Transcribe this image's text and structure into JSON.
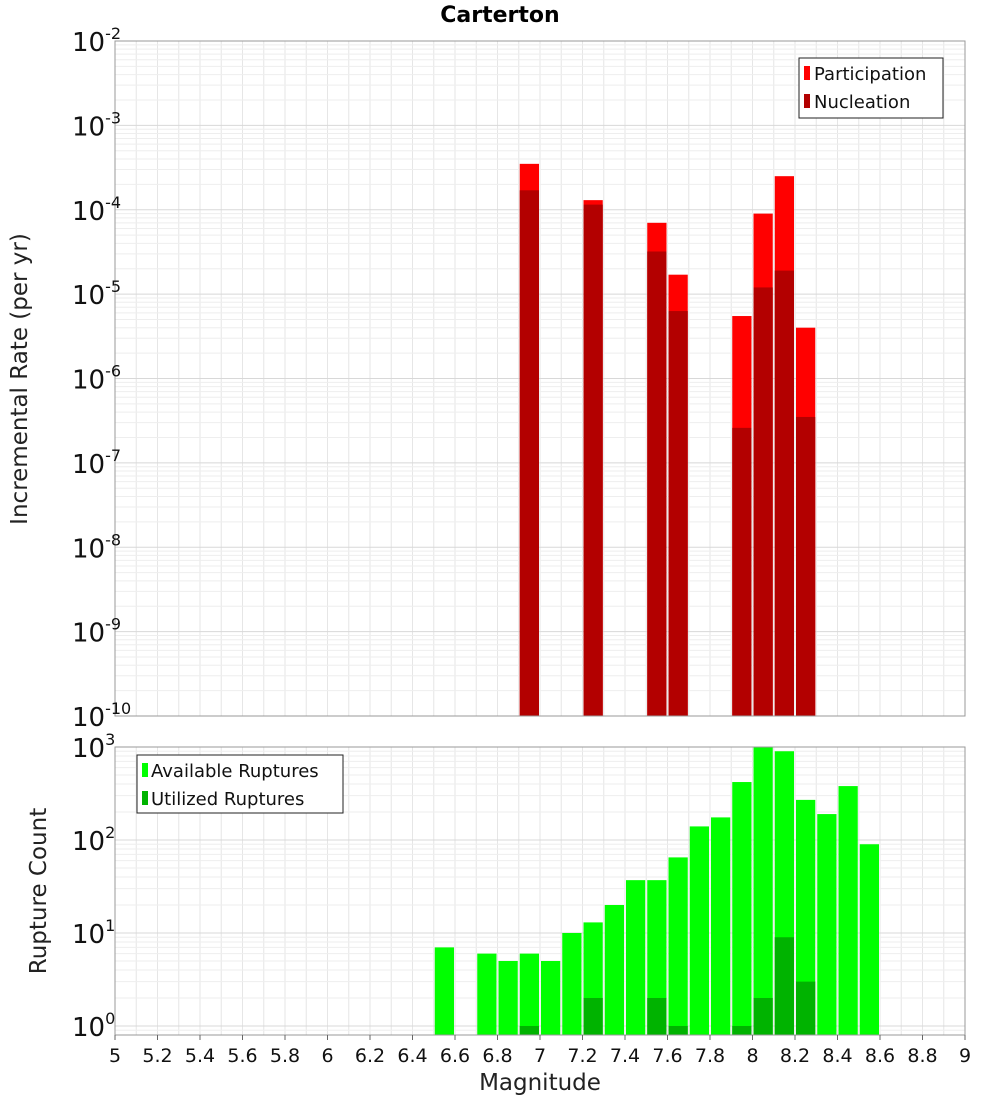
{
  "chart_data": [
    {
      "type": "bar",
      "title": "Carterton",
      "xlabel": "",
      "ylabel": "Incremental Rate (per yr)",
      "yscale": "log",
      "ylim": [
        1e-10,
        0.01
      ],
      "xlim": [
        5,
        9
      ],
      "yticks": [
        {
          "base": "10",
          "exp": "-2"
        },
        {
          "base": "10",
          "exp": "-3"
        },
        {
          "base": "10",
          "exp": "-4"
        },
        {
          "base": "10",
          "exp": "-5"
        },
        {
          "base": "10",
          "exp": "-6"
        },
        {
          "base": "10",
          "exp": "-7"
        },
        {
          "base": "10",
          "exp": "-8"
        },
        {
          "base": "10",
          "exp": "-9"
        },
        {
          "base": "10",
          "exp": "-10"
        }
      ],
      "legend_position": "top-right",
      "grid": true,
      "series": [
        {
          "name": "Participation",
          "color": "#ff0000",
          "x": [
            6.95,
            7.25,
            7.55,
            7.65,
            7.95,
            8.05,
            8.15,
            8.25
          ],
          "values": [
            0.00035,
            0.00013,
            7e-05,
            1.7e-05,
            5.5e-06,
            9e-05,
            0.00025,
            4e-06
          ]
        },
        {
          "name": "Nucleation",
          "color": "#b30000",
          "x": [
            6.95,
            7.25,
            7.55,
            7.65,
            7.95,
            8.05,
            8.15,
            8.25
          ],
          "values": [
            0.00017,
            0.000115,
            3.2e-05,
            6.3e-06,
            2.6e-07,
            1.2e-05,
            1.9e-05,
            3.5e-07
          ]
        }
      ]
    },
    {
      "type": "bar",
      "title": "",
      "xlabel": "Magnitude",
      "ylabel": "Rupture Count",
      "yscale": "log",
      "ylim": [
        0.8,
        1000
      ],
      "xlim": [
        5,
        9
      ],
      "xticks": [
        "5",
        "5.2",
        "5.4",
        "5.6",
        "5.8",
        "6",
        "6.2",
        "6.4",
        "6.6",
        "6.8",
        "7",
        "7.2",
        "7.4",
        "7.6",
        "7.8",
        "8",
        "8.2",
        "8.4",
        "8.6",
        "8.8",
        "9"
      ],
      "yticks": [
        {
          "base": "10",
          "exp": "3"
        },
        {
          "base": "10",
          "exp": "2"
        },
        {
          "base": "10",
          "exp": "1"
        },
        {
          "base": "10",
          "exp": "0"
        }
      ],
      "legend_position": "top-left",
      "grid": true,
      "series": [
        {
          "name": "Available Ruptures",
          "color": "#00ff00",
          "x": [
            6.55,
            6.75,
            6.85,
            6.95,
            7.05,
            7.15,
            7.25,
            7.35,
            7.45,
            7.55,
            7.65,
            7.75,
            7.85,
            7.95,
            8.05,
            8.15,
            8.25,
            8.35,
            8.45,
            8.55
          ],
          "values": [
            7,
            6,
            5,
            6,
            5,
            10,
            13,
            20,
            37,
            37,
            65,
            140,
            175,
            420,
            1000,
            900,
            270,
            190,
            380,
            90
          ]
        },
        {
          "name": "Utilized Ruptures",
          "color": "#00b300",
          "x": [
            6.95,
            7.25,
            7.55,
            7.65,
            7.95,
            8.05,
            8.15,
            8.25
          ],
          "values": [
            1,
            2,
            2,
            1,
            1,
            2,
            9,
            3
          ]
        }
      ]
    }
  ]
}
